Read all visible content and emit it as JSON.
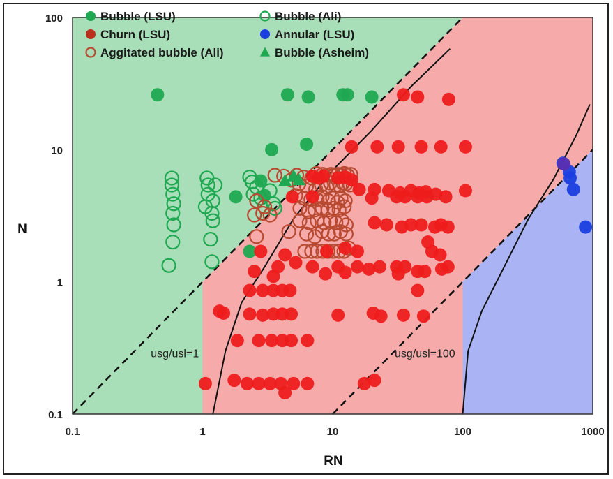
{
  "chart_data": {
    "type": "scatter",
    "xlabel": "RN",
    "ylabel": "N",
    "xscale": "log",
    "yscale": "log",
    "xlim": [
      0.1,
      1000
    ],
    "ylim": [
      0.1,
      100
    ],
    "x_ticks": [
      "0.1",
      "1",
      "10",
      "100",
      "1000"
    ],
    "y_ticks": [
      "0.1",
      "1",
      "10",
      "100"
    ],
    "grid": false,
    "legend_position": "top-left",
    "colors": {
      "bubble_region": "#a8dfb8",
      "churn_region": "#f6aaaa",
      "annular_region": "#aab4f4",
      "bubble": "#1fa851",
      "churn": "#ee1c1c",
      "annular": "#1a3fe0",
      "aggitated_edge": "#b84a32"
    },
    "regions": [
      {
        "name": "bubble",
        "polygon": [
          [
            0.1,
            0.1
          ],
          [
            1,
            0.1
          ],
          [
            1,
            1
          ],
          [
            100,
            100
          ],
          [
            0.1,
            100
          ]
        ]
      },
      {
        "name": "churn",
        "polygon": [
          [
            1,
            0.1
          ],
          [
            100,
            0.1
          ],
          [
            100,
            1
          ],
          [
            1000,
            10
          ],
          [
            1000,
            100
          ],
          [
            100,
            100
          ],
          [
            1,
            1
          ]
        ]
      },
      {
        "name": "annular",
        "polygon": [
          [
            100,
            0.1
          ],
          [
            1000,
            0.1
          ],
          [
            1000,
            10
          ],
          [
            100,
            1
          ]
        ]
      }
    ],
    "lines": [
      {
        "style": "dashed",
        "points": [
          [
            0.1,
            0.1
          ],
          [
            100,
            100
          ]
        ],
        "label": "usg/usl=1",
        "label_pos": [
          0.4,
          0.27
        ]
      },
      {
        "style": "dashed",
        "points": [
          [
            10,
            0.1
          ],
          [
            1000,
            10
          ]
        ],
        "label": "usg/usl=100",
        "label_pos": [
          30,
          0.27
        ]
      },
      {
        "style": "solid",
        "points": [
          [
            1.2,
            0.1
          ],
          [
            1.5,
            0.3
          ],
          [
            2,
            0.7
          ],
          [
            3,
            1.3
          ],
          [
            5,
            3
          ],
          [
            10,
            7
          ],
          [
            20,
            14
          ],
          [
            40,
            30
          ],
          [
            80,
            58
          ]
        ]
      },
      {
        "style": "solid",
        "points": [
          [
            100,
            0.1
          ],
          [
            110,
            0.3
          ],
          [
            140,
            0.6
          ],
          [
            200,
            1.2
          ],
          [
            320,
            3
          ],
          [
            500,
            6
          ],
          [
            750,
            13
          ],
          [
            950,
            22
          ]
        ]
      }
    ],
    "legend": [
      {
        "label": "Bubble (LSU)",
        "marker": "filled-circle",
        "color": "#1fa851"
      },
      {
        "label": "Bubble (Ali)",
        "marker": "hollow-circle",
        "color": "#1fa851"
      },
      {
        "label": "Churn (LSU)",
        "marker": "filled-circle",
        "color": "#b8311c"
      },
      {
        "label": "Annular (LSU)",
        "marker": "filled-circle",
        "color": "#1a3fe0"
      },
      {
        "label": "Aggitated bubble (Ali)",
        "marker": "hollow-circle",
        "color": "#b84a32"
      },
      {
        "label": "Bubble (Asheim)",
        "marker": "filled-triangle",
        "color": "#1fa851"
      }
    ],
    "series": [
      {
        "name": "Bubble (LSU)",
        "marker": "filled-circle",
        "color": "#1fa851",
        "points": [
          [
            0.45,
            26
          ],
          [
            4.5,
            26
          ],
          [
            6.5,
            25
          ],
          [
            12,
            26
          ],
          [
            13,
            26
          ],
          [
            20,
            25
          ],
          [
            3.4,
            10
          ],
          [
            6.3,
            11
          ],
          [
            1.8,
            4.4
          ],
          [
            3,
            4.5
          ],
          [
            2.8,
            5.8
          ],
          [
            2.3,
            1.7
          ]
        ]
      },
      {
        "name": "Bubble (Ali)",
        "marker": "hollow-circle",
        "color": "#1fa851",
        "points": [
          [
            0.58,
            6.1
          ],
          [
            0.58,
            5.4
          ],
          [
            0.59,
            4.6
          ],
          [
            0.6,
            3.9
          ],
          [
            0.59,
            3.3
          ],
          [
            0.6,
            2.7
          ],
          [
            0.59,
            2
          ],
          [
            0.55,
            1.33
          ],
          [
            1.08,
            6.1
          ],
          [
            1.1,
            5.4
          ],
          [
            1.25,
            5.4
          ],
          [
            1.1,
            4.6
          ],
          [
            1.2,
            4.1
          ],
          [
            1.05,
            3.7
          ],
          [
            1.18,
            3.3
          ],
          [
            1.2,
            2.9
          ],
          [
            1.15,
            2.1
          ],
          [
            1.18,
            1.42
          ],
          [
            2.3,
            6.2
          ],
          [
            2.4,
            5.7
          ],
          [
            2.6,
            5.2
          ],
          [
            2.45,
            4.6
          ],
          [
            2.8,
            4.3
          ],
          [
            3.5,
            3.9
          ],
          [
            3.6,
            3.6
          ],
          [
            3.3,
            4.9
          ]
        ]
      },
      {
        "name": "Aggitated bubble (Ali)",
        "marker": "hollow-circle",
        "color": "#b84a32",
        "points": [
          [
            3.6,
            6.4
          ],
          [
            4.2,
            6.3
          ],
          [
            4.8,
            5.9
          ],
          [
            5.3,
            6.4
          ],
          [
            6,
            6.2
          ],
          [
            6.9,
            6.1
          ],
          [
            7.5,
            6.6
          ],
          [
            8.4,
            6.5
          ],
          [
            9,
            6.4
          ],
          [
            9.7,
            6.5
          ],
          [
            10.3,
            6.4
          ],
          [
            10.9,
            6.5
          ],
          [
            11.6,
            6.4
          ],
          [
            12.3,
            6.6
          ],
          [
            13,
            6.4
          ],
          [
            13.8,
            6.5
          ],
          [
            5.5,
            5.5
          ],
          [
            6.3,
            5.3
          ],
          [
            7.4,
            5
          ],
          [
            8.2,
            5.4
          ],
          [
            9,
            5.2
          ],
          [
            9.6,
            5.6
          ],
          [
            10.6,
            5.4
          ],
          [
            11.4,
            5.3
          ],
          [
            12,
            5.6
          ],
          [
            12.6,
            5.5
          ],
          [
            13.6,
            5.4
          ],
          [
            2.6,
            4.1
          ],
          [
            3,
            3.7
          ],
          [
            2.5,
            3.2
          ],
          [
            2.9,
            3.3
          ],
          [
            3.3,
            3.2
          ],
          [
            5.2,
            4.5
          ],
          [
            6,
            4.3
          ],
          [
            6.8,
            4.2
          ],
          [
            7.6,
            4.2
          ],
          [
            8.3,
            4.4
          ],
          [
            9.3,
            4.1
          ],
          [
            10,
            4.3
          ],
          [
            10.9,
            4
          ],
          [
            11.6,
            4.3
          ],
          [
            12.5,
            4.1
          ],
          [
            5.6,
            3.6
          ],
          [
            6.5,
            3.4
          ],
          [
            7.3,
            3.5
          ],
          [
            8.3,
            3.6
          ],
          [
            9.2,
            3.5
          ],
          [
            10.2,
            3.6
          ],
          [
            11.2,
            3.5
          ],
          [
            12.3,
            3.7
          ],
          [
            2.6,
            2.2
          ],
          [
            5.6,
            2.9
          ],
          [
            6.6,
            2.8
          ],
          [
            7.6,
            2.9
          ],
          [
            8.6,
            2.8
          ],
          [
            9.6,
            2.9
          ],
          [
            10.6,
            2.8
          ],
          [
            11.8,
            2.9
          ],
          [
            12.7,
            2.7
          ],
          [
            4.6,
            2.4
          ],
          [
            6.3,
            2.3
          ],
          [
            7.3,
            2.2
          ],
          [
            8.3,
            2.4
          ],
          [
            9.3,
            2.3
          ],
          [
            10.3,
            2.3
          ],
          [
            11.5,
            2.4
          ],
          [
            12.7,
            2.3
          ],
          [
            6.1,
            1.7
          ],
          [
            6.9,
            1.7
          ],
          [
            7.6,
            1.7
          ],
          [
            8.4,
            1.7
          ],
          [
            9.2,
            1.7
          ],
          [
            10.1,
            1.7
          ],
          [
            11.2,
            1.7
          ],
          [
            12.2,
            1.7
          ],
          [
            13.3,
            1.8
          ]
        ]
      },
      {
        "name": "Churn (LSU)",
        "marker": "filled-circle",
        "color": "#ee1c1c",
        "points": [
          [
            35,
            26
          ],
          [
            45,
            25
          ],
          [
            78,
            24
          ],
          [
            14,
            10.5
          ],
          [
            22,
            10.5
          ],
          [
            32,
            10.5
          ],
          [
            48,
            10.5
          ],
          [
            68,
            10.5
          ],
          [
            105,
            10.5
          ],
          [
            7,
            6.3
          ],
          [
            7.8,
            6.1
          ],
          [
            8.5,
            6.3
          ],
          [
            11,
            6.1
          ],
          [
            12.5,
            6.2
          ],
          [
            14,
            5.9
          ],
          [
            16,
            5
          ],
          [
            21,
            5
          ],
          [
            27,
            4.9
          ],
          [
            33,
            4.7
          ],
          [
            40,
            4.9
          ],
          [
            46,
            4.7
          ],
          [
            52,
            4.8
          ],
          [
            62,
            4.6
          ],
          [
            105,
            4.9
          ],
          [
            7,
            4.4
          ],
          [
            4.9,
            4.4
          ],
          [
            20,
            4.3
          ],
          [
            31,
            4.4
          ],
          [
            36,
            4.4
          ],
          [
            45,
            4.4
          ],
          [
            53,
            4.4
          ],
          [
            74,
            4.4
          ],
          [
            21,
            2.8
          ],
          [
            26,
            2.7
          ],
          [
            34,
            2.6
          ],
          [
            40,
            2.7
          ],
          [
            48,
            2.7
          ],
          [
            61,
            2.6
          ],
          [
            68,
            2.7
          ],
          [
            77,
            2.6
          ],
          [
            2.8,
            1.7
          ],
          [
            4.3,
            1.6
          ],
          [
            9,
            1.7
          ],
          [
            12.5,
            1.8
          ],
          [
            15.5,
            1.7
          ],
          [
            54,
            2
          ],
          [
            58,
            1.7
          ],
          [
            67,
            1.6
          ],
          [
            3.8,
            1.3
          ],
          [
            5.2,
            1.4
          ],
          [
            7,
            1.3
          ],
          [
            11,
            1.3
          ],
          [
            15.5,
            1.3
          ],
          [
            23,
            1.3
          ],
          [
            31,
            1.3
          ],
          [
            36,
            1.3
          ],
          [
            69,
            1.25
          ],
          [
            77,
            1.3
          ],
          [
            19,
            1.25
          ],
          [
            32,
            1.15
          ],
          [
            45,
            1.2
          ],
          [
            51,
            1.2
          ],
          [
            2.5,
            1.2
          ],
          [
            3.5,
            1.1
          ],
          [
            8.8,
            1.15
          ],
          [
            12.5,
            1.18
          ],
          [
            2.3,
            0.86
          ],
          [
            2.9,
            0.86
          ],
          [
            3.5,
            0.86
          ],
          [
            4.1,
            0.86
          ],
          [
            4.7,
            0.86
          ],
          [
            1.45,
            0.58
          ],
          [
            1.35,
            0.6
          ],
          [
            2.3,
            0.57
          ],
          [
            2.9,
            0.56
          ],
          [
            3.5,
            0.57
          ],
          [
            4.1,
            0.57
          ],
          [
            4.8,
            0.57
          ],
          [
            11,
            0.56
          ],
          [
            20.5,
            0.58
          ],
          [
            23.5,
            0.55
          ],
          [
            35,
            0.56
          ],
          [
            50,
            0.55
          ],
          [
            45,
            0.86
          ],
          [
            1.85,
            0.36
          ],
          [
            2.7,
            0.36
          ],
          [
            3.4,
            0.36
          ],
          [
            4.1,
            0.36
          ],
          [
            4.8,
            0.36
          ],
          [
            6.4,
            0.36
          ],
          [
            1.05,
            0.17
          ],
          [
            1.75,
            0.18
          ],
          [
            2.2,
            0.17
          ],
          [
            2.7,
            0.17
          ],
          [
            3.3,
            0.17
          ],
          [
            4,
            0.17
          ],
          [
            5,
            0.17
          ],
          [
            6.4,
            0.17
          ],
          [
            4.3,
            0.145
          ],
          [
            17.5,
            0.17
          ],
          [
            21,
            0.18
          ]
        ]
      },
      {
        "name": "Annular (LSU)",
        "marker": "filled-circle",
        "color": "#1a3fe0",
        "points": [
          [
            590,
            7.9
          ],
          [
            660,
            6.8
          ],
          [
            670,
            6.1
          ],
          [
            710,
            5
          ],
          [
            880,
            2.6
          ]
        ]
      },
      {
        "name": "Annular/Churn overlap",
        "marker": "filled-circle",
        "color": "#5a2fb0",
        "points": [
          [
            600,
            7.8
          ]
        ]
      },
      {
        "name": "Bubble (Asheim)",
        "marker": "filled-triangle",
        "color": "#1fa851",
        "points": [
          [
            4.3,
            5.8
          ],
          [
            5,
            6.3
          ],
          [
            5.5,
            5.9
          ]
        ]
      }
    ]
  }
}
